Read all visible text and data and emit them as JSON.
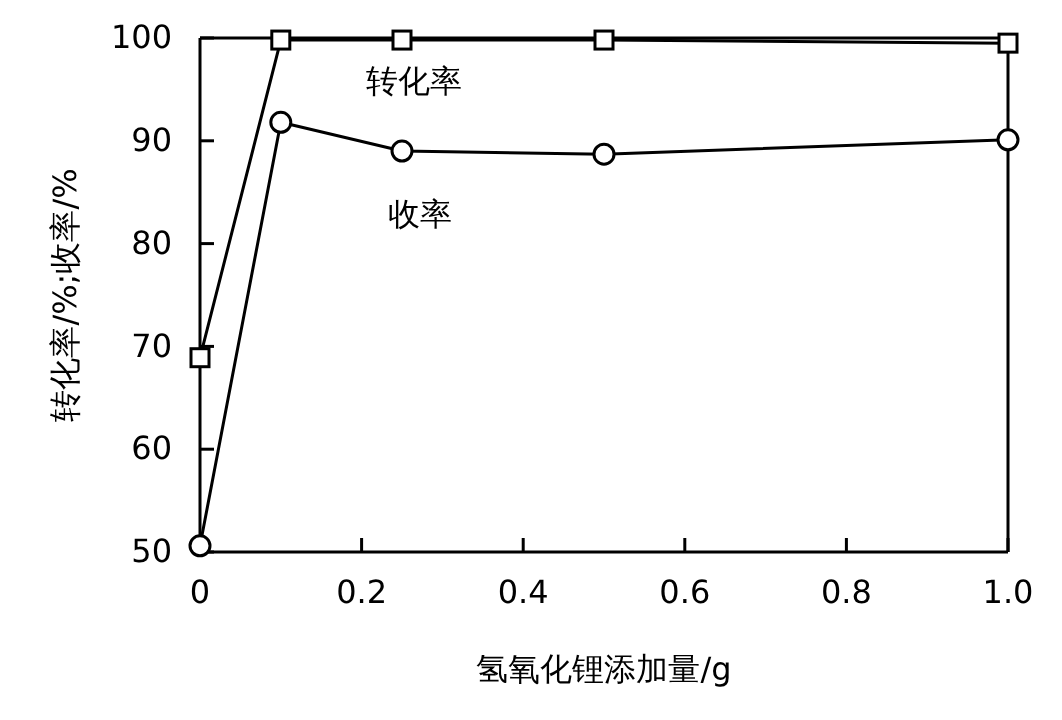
{
  "chart_data": {
    "type": "line",
    "xlabel": "氢氧化锂添加量/g",
    "ylabel": "转化率/%;收率/%",
    "xlim": [
      0,
      1.0
    ],
    "xticks": [
      0,
      {
        "value": 0.2,
        "label": "0.2"
      },
      {
        "value": 0.4,
        "label": "0.4"
      },
      {
        "value": 0.6,
        "label": "0.6"
      },
      {
        "value": 0.8,
        "label": "0.8"
      },
      {
        "value": 1.0,
        "label": "1.0"
      }
    ],
    "ylim": [
      50,
      100
    ],
    "yticks": [
      50,
      60,
      70,
      80,
      90,
      100
    ],
    "grid": false,
    "line_style": "solid",
    "series": [
      {
        "name": "转化率",
        "color": "#000000",
        "marker": "square",
        "x": [
          0,
          0.1,
          0.25,
          0.5,
          1.0
        ],
        "values": [
          68.9,
          99.8,
          99.8,
          99.8,
          99.5
        ]
      },
      {
        "name": "收率",
        "color": "#000000",
        "marker": "circle",
        "x": [
          0,
          0.1,
          0.25,
          0.5,
          1.0
        ],
        "values": [
          50.6,
          91.8,
          89.0,
          88.7,
          90.1
        ]
      }
    ]
  }
}
